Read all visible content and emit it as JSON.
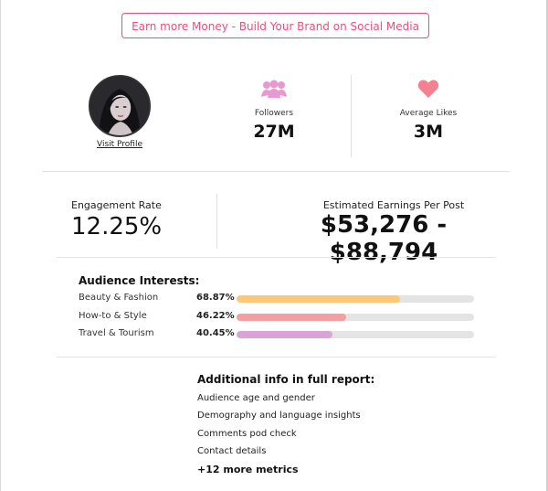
{
  "cta": {
    "label": "Earn more Money - Build Your Brand on Social Media"
  },
  "profile": {
    "visit_label": "Visit Profile"
  },
  "stats": {
    "followers_label": "Followers",
    "followers_value": "27M",
    "likes_label": "Average Likes",
    "likes_value": "3M"
  },
  "engagement": {
    "label": "Engagement Rate",
    "value": "12.25%"
  },
  "earnings": {
    "label": "Estimated Earnings Per Post",
    "value": "$53,276 - $88,794"
  },
  "interests": {
    "title": "Audience Interests:",
    "items": [
      {
        "name": "Beauty & Fashion",
        "percent_label": "68.87%",
        "fraction": 0.6887,
        "color": "#fcc877"
      },
      {
        "name": "How-to & Style",
        "percent_label": "46.22%",
        "fraction": 0.4622,
        "color": "#f4a0a3"
      },
      {
        "name": "Travel & Tourism",
        "percent_label": "40.45%",
        "fraction": 0.4045,
        "color": "#dba4d8"
      }
    ]
  },
  "additional": {
    "title": "Additional info in full report:",
    "items": [
      "Audience age and gender",
      "Demography and language insights",
      "Comments pod check",
      "Contact details"
    ],
    "more": "+12 more metrics"
  },
  "icons": {
    "followers": "people-group-icon",
    "likes": "heart-icon",
    "icon_color": "#e89ad0",
    "heart_color": "#f4818f"
  },
  "colors": {
    "accent": "#e8507a"
  }
}
